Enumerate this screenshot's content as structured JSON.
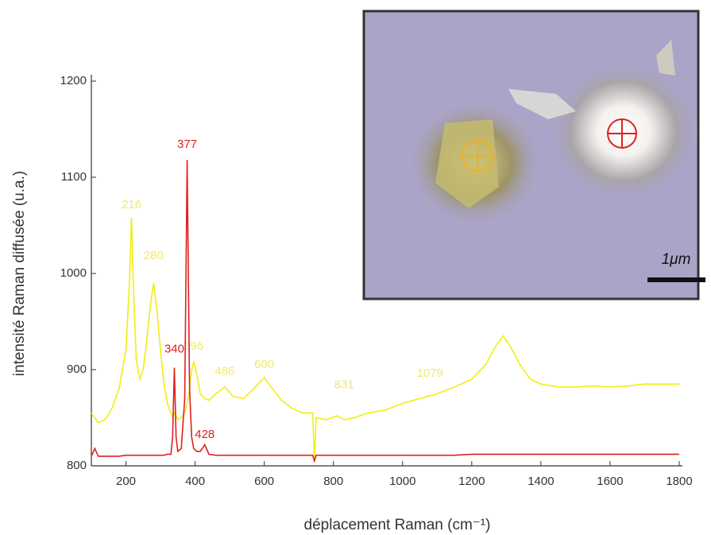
{
  "chart_data": {
    "type": "line",
    "x_label": "déplacement Raman (cm⁻¹)",
    "y_label": "intensité Raman diffusée (u.a.)",
    "xlim": [
      100,
      1800
    ],
    "ylim": [
      800,
      1200
    ],
    "xticks": [
      200,
      400,
      600,
      800,
      1000,
      1200,
      1400,
      1600,
      1800
    ],
    "yticks": [
      800,
      900,
      1000,
      1100,
      1200
    ],
    "x": [
      100,
      110,
      120,
      140,
      160,
      180,
      200,
      210,
      216,
      222,
      230,
      240,
      250,
      260,
      270,
      280,
      290,
      300,
      310,
      320,
      330,
      335,
      340,
      345,
      350,
      360,
      370,
      377,
      384,
      390,
      396,
      405,
      415,
      428,
      440,
      460,
      486,
      510,
      540,
      570,
      600,
      620,
      650,
      680,
      710,
      740,
      745,
      750,
      780,
      810,
      831,
      860,
      900,
      950,
      1000,
      1050,
      1079,
      1100,
      1150,
      1200,
      1240,
      1270,
      1291,
      1310,
      1340,
      1370,
      1400,
      1450,
      1500,
      1550,
      1600,
      1650,
      1700,
      1750,
      1800
    ],
    "series": [
      {
        "color": "#f2ee10",
        "label_color": "#eeea70",
        "values": [
          855,
          850,
          845,
          848,
          860,
          880,
          920,
          990,
          1058,
          980,
          910,
          890,
          900,
          930,
          965,
          990,
          960,
          920,
          885,
          865,
          855,
          850,
          855,
          852,
          848,
          850,
          855,
          865,
          880,
          900,
          908,
          895,
          875,
          870,
          868,
          875,
          882,
          872,
          870,
          880,
          892,
          882,
          868,
          860,
          855,
          855,
          805,
          850,
          848,
          852,
          848,
          850,
          855,
          858,
          865,
          870,
          873,
          875,
          882,
          890,
          905,
          925,
          935,
          925,
          905,
          890,
          885,
          882,
          882,
          883,
          882,
          883,
          885,
          885,
          885
        ],
        "peaks": [
          {
            "x": 216,
            "y": 1071
          },
          {
            "x": 280,
            "y": 1018
          },
          {
            "x": 396,
            "y": 924
          },
          {
            "x": 486,
            "y": 898
          },
          {
            "x": 600,
            "y": 905
          },
          {
            "x": 831,
            "y": 884
          },
          {
            "x": 1079,
            "y": 896
          },
          {
            "x": 1291,
            "y": 978
          }
        ]
      },
      {
        "color": "#e02020",
        "label_color": "#e02020",
        "values": [
          810,
          818,
          810,
          810,
          810,
          810,
          811,
          811,
          811,
          811,
          811,
          811,
          811,
          811,
          811,
          811,
          811,
          811,
          811,
          812,
          812,
          830,
          902,
          830,
          815,
          818,
          870,
          1118,
          880,
          830,
          818,
          815,
          815,
          822,
          812,
          811,
          811,
          811,
          811,
          811,
          811,
          811,
          811,
          811,
          811,
          811,
          805,
          811,
          811,
          811,
          811,
          811,
          811,
          811,
          811,
          811,
          811,
          811,
          811,
          812,
          812,
          812,
          812,
          812,
          812,
          812,
          812,
          812,
          812,
          812,
          812,
          812,
          812,
          812,
          812
        ],
        "peaks": [
          {
            "x": 377,
            "y": 1134
          },
          {
            "x": 340,
            "y": 921
          },
          {
            "x": 428,
            "y": 832
          }
        ]
      }
    ]
  },
  "inset": {
    "scale_label": "1μm"
  }
}
